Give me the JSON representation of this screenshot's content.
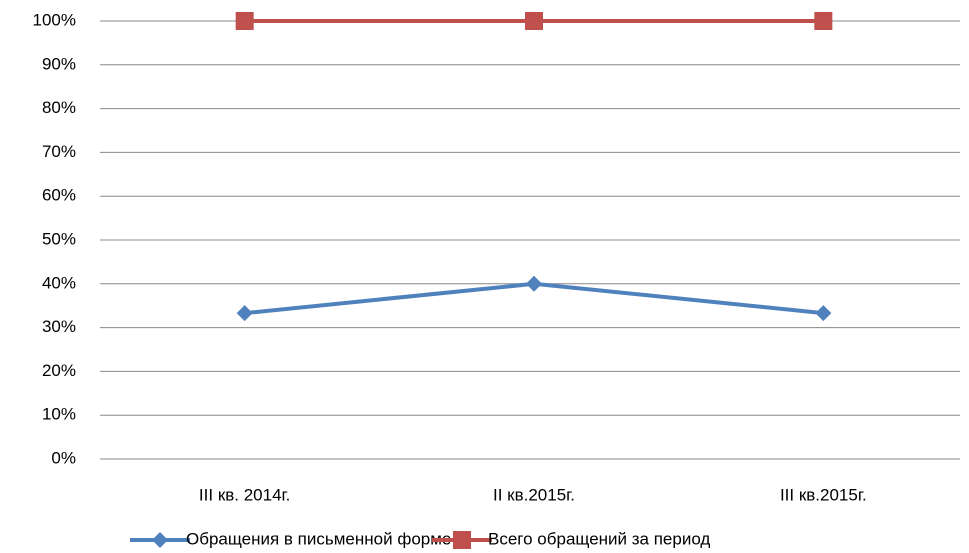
{
  "chart_data": {
    "type": "line",
    "categories": [
      "III кв. 2014г.",
      "II кв.2015г.",
      "III кв.2015г."
    ],
    "series": [
      {
        "name": "Обращения в письменной форме",
        "color": "#4f81bd",
        "marker": "diamond",
        "values": [
          33.3,
          40,
          33.3
        ]
      },
      {
        "name": "Всего обращений за период",
        "color": "#c0504d",
        "marker": "square",
        "values": [
          100,
          100,
          100
        ]
      }
    ],
    "ylim": [
      0,
      100
    ],
    "yticks": [
      {
        "value": 0,
        "label": "0%"
      },
      {
        "value": 10,
        "label": "10%"
      },
      {
        "value": 20,
        "label": "20%"
      },
      {
        "value": 30,
        "label": "30%"
      },
      {
        "value": 40,
        "label": "40%"
      },
      {
        "value": 50,
        "label": "50%"
      },
      {
        "value": 60,
        "label": "60%"
      },
      {
        "value": 70,
        "label": "70%"
      },
      {
        "value": 80,
        "label": "80%"
      },
      {
        "value": 90,
        "label": "90%"
      },
      {
        "value": 100,
        "label": "100%"
      }
    ],
    "grid": true,
    "legend": "bottom"
  }
}
